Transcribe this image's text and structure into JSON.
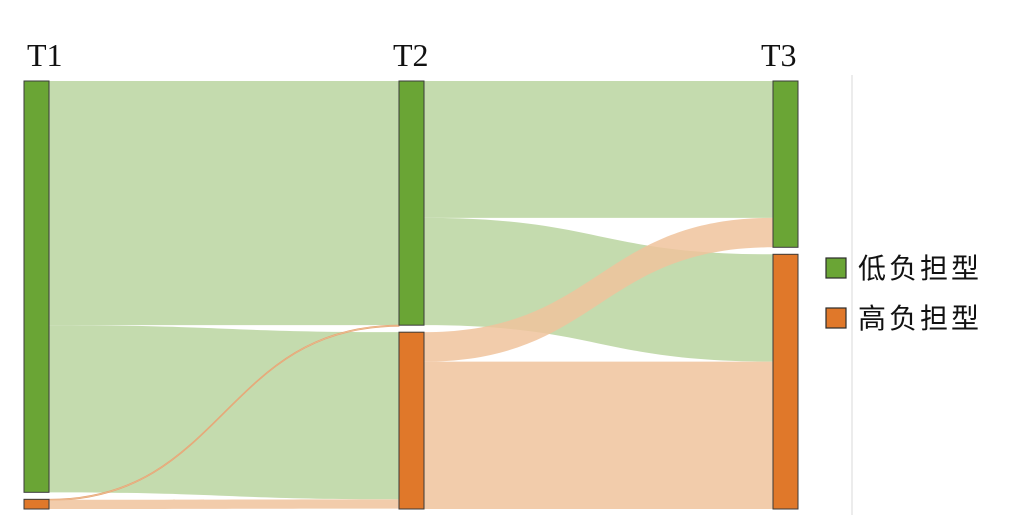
{
  "chart_data": {
    "type": "sankey",
    "stages": [
      "T1",
      "T2",
      "T3"
    ],
    "categories": [
      {
        "name": "低负担型",
        "color": "#6aa535"
      },
      {
        "name": "高负担型",
        "color": "#e0782a"
      }
    ],
    "node_sizes": [
      {
        "stage": "T1",
        "values": [
          0.977,
          0.023
        ]
      },
      {
        "stage": "T2",
        "values": [
          0.58,
          0.42
        ]
      },
      {
        "stage": "T3",
        "values": [
          0.395,
          0.605
        ]
      }
    ],
    "flows": [
      {
        "from_stage": "T1",
        "from": "低负担型",
        "to_stage": "T2",
        "to": "低负担型",
        "value": 0.58
      },
      {
        "from_stage": "T1",
        "from": "低负担型",
        "to_stage": "T2",
        "to": "高负担型",
        "value": 0.397
      },
      {
        "from_stage": "T1",
        "from": "高负担型",
        "to_stage": "T2",
        "to": "低负担型",
        "value": 0.001
      },
      {
        "from_stage": "T1",
        "from": "高负担型",
        "to_stage": "T2",
        "to": "高负担型",
        "value": 0.022
      },
      {
        "from_stage": "T2",
        "from": "低负担型",
        "to_stage": "T3",
        "to": "低负担型",
        "value": 0.325
      },
      {
        "from_stage": "T2",
        "from": "低负担型",
        "to_stage": "T3",
        "to": "高负担型",
        "value": 0.255
      },
      {
        "from_stage": "T2",
        "from": "高负担型",
        "to_stage": "T3",
        "to": "低负担型",
        "value": 0.07
      },
      {
        "from_stage": "T2",
        "from": "高负担型",
        "to_stage": "T3",
        "to": "高负担型",
        "value": 0.35
      }
    ],
    "legend": {
      "position": "right",
      "entries": [
        "低负担型",
        "高负担型"
      ]
    },
    "title": "",
    "xlabel": "",
    "ylabel": "",
    "grid": false
  }
}
